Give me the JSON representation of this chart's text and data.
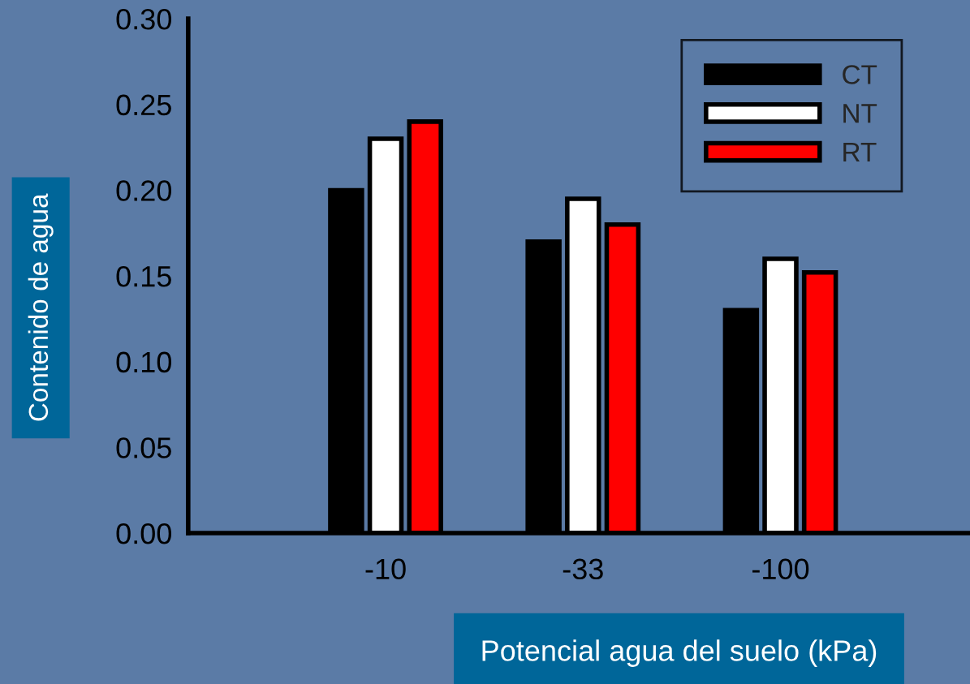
{
  "chart_data": {
    "type": "bar",
    "xlabel": "Potencial agua del suelo (kPa)",
    "ylabel": "Contenido de agua",
    "categories": [
      "-10",
      "-33",
      "-100"
    ],
    "series": [
      {
        "name": "CT",
        "color": "#000000",
        "values": [
          0.2,
          0.17,
          0.13
        ]
      },
      {
        "name": "NT",
        "color": "#ffffff",
        "values": [
          0.23,
          0.195,
          0.16
        ]
      },
      {
        "name": "RT",
        "color": "#ff0000",
        "values": [
          0.24,
          0.18,
          0.152
        ]
      }
    ],
    "ylim": [
      0,
      0.3
    ],
    "yticks": [
      {
        "value": 0,
        "label": "0.00"
      },
      {
        "value": 0.05,
        "label": "0.05"
      },
      {
        "value": 0.1,
        "label": "0.10"
      },
      {
        "value": 0.15,
        "label": "0.15"
      },
      {
        "value": 0.2,
        "label": "0.20"
      },
      {
        "value": 0.25,
        "label": "0.25"
      },
      {
        "value": 0.3,
        "label": "0.30"
      }
    ],
    "grid": false,
    "legend": "top right"
  }
}
